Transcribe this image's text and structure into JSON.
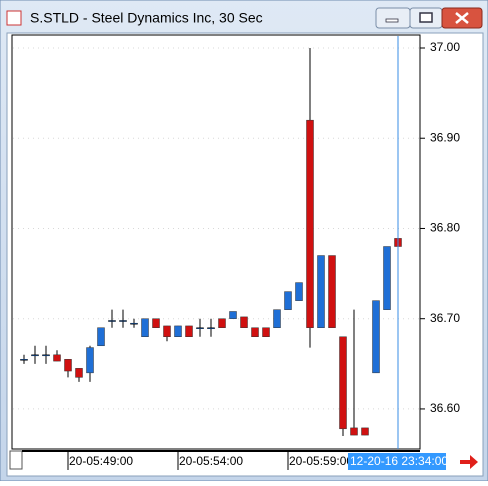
{
  "chart_data": {
    "type": "candlestick",
    "title": "S.STLD - Steel Dynamics Inc, 30 Sec",
    "categories": [
      null,
      null,
      null,
      null,
      "20-05:49:00",
      null,
      null,
      null,
      null,
      null,
      null,
      null,
      null,
      null,
      "20-05:54:00",
      null,
      null,
      null,
      null,
      null,
      null,
      null,
      null,
      null,
      "20-05:59:00",
      null,
      null,
      null,
      null,
      null,
      null,
      null,
      null,
      null,
      null
    ],
    "open": [
      36.655,
      36.66,
      36.66,
      36.66,
      36.655,
      36.645,
      36.64,
      36.67,
      36.698,
      36.698,
      36.695,
      36.68,
      36.7,
      36.692,
      36.68,
      36.692,
      36.69,
      36.69,
      36.7,
      36.7,
      36.702,
      36.69,
      36.69,
      36.69,
      36.71,
      36.72,
      36.92,
      36.69,
      36.77,
      36.68,
      36.579,
      36.579,
      36.64,
      36.71,
      36.789
    ],
    "high": [
      36.66,
      36.67,
      36.67,
      36.665,
      36.655,
      36.645,
      36.67,
      36.69,
      36.71,
      36.71,
      36.7,
      36.7,
      36.7,
      36.692,
      36.692,
      36.692,
      36.7,
      36.7,
      36.7,
      36.708,
      36.702,
      36.69,
      36.69,
      36.71,
      36.73,
      36.74,
      37.0,
      36.77,
      36.77,
      36.68,
      36.71,
      36.579,
      36.72,
      36.78,
      36.84
    ],
    "low": [
      36.65,
      36.65,
      36.65,
      36.653,
      36.635,
      36.63,
      36.63,
      36.67,
      36.69,
      36.69,
      36.69,
      36.68,
      36.69,
      36.675,
      36.68,
      36.68,
      36.68,
      36.68,
      36.69,
      36.7,
      36.69,
      36.68,
      36.68,
      36.69,
      36.71,
      36.72,
      36.668,
      36.69,
      36.69,
      36.57,
      36.571,
      36.571,
      36.64,
      36.71,
      36.78
    ],
    "close": [
      36.655,
      36.66,
      36.66,
      36.653,
      36.642,
      36.635,
      36.668,
      36.69,
      36.698,
      36.698,
      36.695,
      36.7,
      36.69,
      36.68,
      36.692,
      36.68,
      36.69,
      36.69,
      36.69,
      36.708,
      36.69,
      36.68,
      36.68,
      36.71,
      36.73,
      36.74,
      36.69,
      36.77,
      36.69,
      36.578,
      36.571,
      36.571,
      36.72,
      36.78,
      36.78
    ],
    "up_color": "#1f6fd6",
    "down_color": "#d01010",
    "ylim": [
      36.5556,
      37.0144
    ],
    "yticks": [
      {
        "value": 36.6,
        "label": "36.60"
      },
      {
        "value": 36.7,
        "label": "36.70"
      },
      {
        "value": 36.8,
        "label": "36.80"
      },
      {
        "value": 36.9,
        "label": "36.90"
      },
      {
        "value": 37.0,
        "label": "37.00"
      }
    ],
    "grid": true,
    "cursor_label": "12-20-16 23:34:00"
  }
}
